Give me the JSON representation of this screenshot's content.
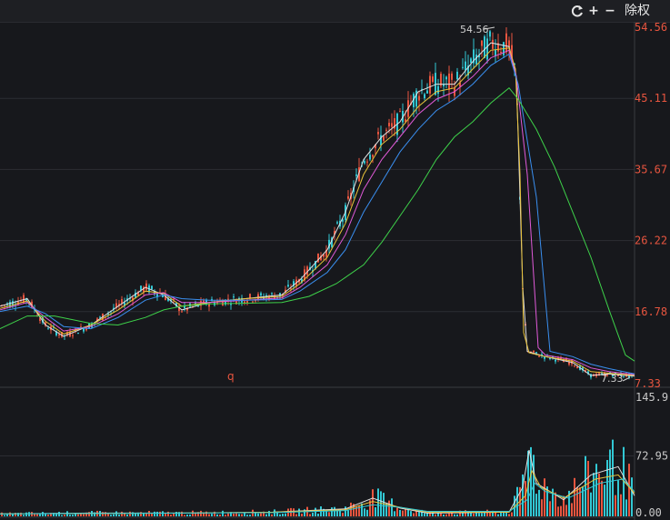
{
  "toolbar": {
    "refresh_icon": "refresh-icon",
    "zoom_in_label": "+",
    "zoom_out_label": "−",
    "ex_rights_label": "除权"
  },
  "colors": {
    "background": "#17181c",
    "grid": "#2c2d33",
    "up": "#e8553f",
    "down": "#32c8d4",
    "price_axis": "#e8553f",
    "volume_axis": "#c8c8c8",
    "ma_white": "#e0e0e0",
    "ma_yellow": "#e8c23a",
    "ma_magenta": "#e05ad8",
    "ma_blue": "#3a8ff0",
    "ma_green": "#3ed24a",
    "marker": "#e8553f"
  },
  "chart_data": [
    {
      "type": "candlestick",
      "ylim": [
        7.33,
        54.56
      ],
      "y_ticks": [
        "54.56",
        "45.11",
        "35.67",
        "26.22",
        "16.78",
        "7.33"
      ],
      "annotations": {
        "high_label": "54.56",
        "low_label": "7.33",
        "marker_label": "q"
      },
      "series": [
        {
          "style": "ma-white",
          "points": [
            [
              0,
              17.5
            ],
            [
              30,
              18.5
            ],
            [
              50,
              15
            ],
            [
              70,
              13.5
            ],
            [
              100,
              15
            ],
            [
              130,
              17.5
            ],
            [
              160,
              20
            ],
            [
              180,
              19
            ],
            [
              200,
              17
            ],
            [
              230,
              18
            ],
            [
              270,
              18.5
            ],
            [
              310,
              19
            ],
            [
              330,
              21
            ],
            [
              360,
              25
            ],
            [
              380,
              30
            ],
            [
              400,
              37
            ],
            [
              420,
              40
            ],
            [
              440,
              42
            ],
            [
              460,
              46
            ],
            [
              480,
              47
            ],
            [
              500,
              47
            ],
            [
              520,
              50
            ],
            [
              540,
              52.5
            ],
            [
              560,
              52
            ],
            [
              568,
              48
            ],
            [
              575,
              20
            ],
            [
              580,
              11.5
            ],
            [
              600,
              10.8
            ],
            [
              630,
              10
            ],
            [
              650,
              8.3
            ],
            [
              670,
              8.5
            ],
            [
              698,
              8.2
            ]
          ]
        },
        {
          "style": "ma-yellow",
          "points": [
            [
              0,
              17.2
            ],
            [
              30,
              18.2
            ],
            [
              50,
              15.5
            ],
            [
              70,
              13.8
            ],
            [
              100,
              15
            ],
            [
              130,
              17
            ],
            [
              160,
              19.5
            ],
            [
              180,
              19.2
            ],
            [
              200,
              17.5
            ],
            [
              230,
              18
            ],
            [
              270,
              18.5
            ],
            [
              310,
              18.8
            ],
            [
              330,
              20.5
            ],
            [
              360,
              24
            ],
            [
              380,
              28.5
            ],
            [
              400,
              35
            ],
            [
              420,
              39
            ],
            [
              440,
              41
            ],
            [
              460,
              44
            ],
            [
              480,
              46
            ],
            [
              500,
              46.5
            ],
            [
              520,
              49
            ],
            [
              540,
              51.5
            ],
            [
              560,
              51.8
            ],
            [
              567,
              49
            ],
            [
              572,
              35
            ],
            [
              576,
              14
            ],
            [
              582,
              11.3
            ],
            [
              600,
              10.8
            ],
            [
              630,
              10.2
            ],
            [
              650,
              8.8
            ],
            [
              670,
              8.6
            ],
            [
              698,
              8.3
            ]
          ]
        },
        {
          "style": "ma-magenta",
          "points": [
            [
              0,
              17
            ],
            [
              30,
              18
            ],
            [
              50,
              16
            ],
            [
              70,
              14.2
            ],
            [
              100,
              14.8
            ],
            [
              130,
              16.5
            ],
            [
              160,
              19
            ],
            [
              180,
              19.3
            ],
            [
              200,
              18
            ],
            [
              230,
              18
            ],
            [
              270,
              18.3
            ],
            [
              310,
              18.6
            ],
            [
              330,
              20
            ],
            [
              360,
              23
            ],
            [
              380,
              27
            ],
            [
              400,
              33
            ],
            [
              420,
              37
            ],
            [
              440,
              40
            ],
            [
              460,
              43
            ],
            [
              480,
              45
            ],
            [
              500,
              46
            ],
            [
              520,
              48
            ],
            [
              540,
              50.5
            ],
            [
              560,
              51.5
            ],
            [
              568,
              48
            ],
            [
              580,
              35
            ],
            [
              592,
              12
            ],
            [
              600,
              11
            ],
            [
              630,
              10.4
            ],
            [
              650,
              9.3
            ],
            [
              670,
              8.8
            ],
            [
              698,
              8.4
            ]
          ]
        },
        {
          "style": "ma-blue",
          "points": [
            [
              0,
              16.8
            ],
            [
              30,
              17.5
            ],
            [
              50,
              16.5
            ],
            [
              70,
              14.8
            ],
            [
              100,
              14.5
            ],
            [
              130,
              16
            ],
            [
              160,
              18.3
            ],
            [
              180,
              19
            ],
            [
              200,
              18.5
            ],
            [
              230,
              18.3
            ],
            [
              270,
              18.3
            ],
            [
              310,
              18.4
            ],
            [
              330,
              19.5
            ],
            [
              360,
              22
            ],
            [
              380,
              25
            ],
            [
              400,
              30
            ],
            [
              420,
              34
            ],
            [
              440,
              38
            ],
            [
              460,
              41
            ],
            [
              480,
              43.5
            ],
            [
              500,
              45
            ],
            [
              520,
              47
            ],
            [
              540,
              49.5
            ],
            [
              560,
              51
            ],
            [
              570,
              47
            ],
            [
              590,
              32
            ],
            [
              605,
              11.5
            ],
            [
              630,
              10.8
            ],
            [
              650,
              9.8
            ],
            [
              670,
              9.2
            ],
            [
              698,
              8.5
            ]
          ]
        },
        {
          "style": "ma-green",
          "points": [
            [
              0,
              14.5
            ],
            [
              30,
              16.2
            ],
            [
              60,
              16.2
            ],
            [
              100,
              15.2
            ],
            [
              130,
              15
            ],
            [
              160,
              16
            ],
            [
              180,
              17
            ],
            [
              200,
              17.5
            ],
            [
              230,
              17.8
            ],
            [
              270,
              17.9
            ],
            [
              310,
              18
            ],
            [
              340,
              18.8
            ],
            [
              370,
              20.5
            ],
            [
              400,
              23
            ],
            [
              420,
              26
            ],
            [
              440,
              29.5
            ],
            [
              460,
              33
            ],
            [
              480,
              37
            ],
            [
              500,
              40
            ],
            [
              520,
              42
            ],
            [
              540,
              44.5
            ],
            [
              560,
              46.5
            ],
            [
              570,
              45
            ],
            [
              590,
              41
            ],
            [
              610,
              36
            ],
            [
              630,
              30
            ],
            [
              650,
              24
            ],
            [
              670,
              17
            ],
            [
              688,
              11
            ],
            [
              698,
              10.2
            ]
          ]
        }
      ]
    },
    {
      "type": "bar",
      "ylim": [
        0,
        145.9
      ],
      "y_ticks": [
        "145.9",
        "72.95",
        "0.00"
      ],
      "series": [
        {
          "style": "vol-ma-white",
          "points": [
            [
              0,
              3
            ],
            [
              100,
              4
            ],
            [
              200,
              4
            ],
            [
              300,
              5
            ],
            [
              380,
              9
            ],
            [
              410,
              22
            ],
            [
              440,
              10
            ],
            [
              470,
              4
            ],
            [
              560,
              5
            ],
            [
              575,
              35
            ],
            [
              582,
              80
            ],
            [
              590,
              40
            ],
            [
              620,
              20
            ],
            [
              650,
              50
            ],
            [
              680,
              60
            ],
            [
              698,
              25
            ]
          ]
        },
        {
          "style": "vol-ma-yellow",
          "points": [
            [
              0,
              3
            ],
            [
              100,
              3.5
            ],
            [
              200,
              4
            ],
            [
              300,
              5
            ],
            [
              380,
              8
            ],
            [
              410,
              18
            ],
            [
              440,
              11
            ],
            [
              470,
              5
            ],
            [
              560,
              5
            ],
            [
              578,
              25
            ],
            [
              585,
              55
            ],
            [
              595,
              35
            ],
            [
              620,
              22
            ],
            [
              655,
              45
            ],
            [
              680,
              50
            ],
            [
              698,
              28
            ]
          ]
        },
        {
          "style": "vol-ma-blue",
          "points": [
            [
              0,
              3
            ],
            [
              100,
              3.5
            ],
            [
              200,
              4
            ],
            [
              300,
              4.5
            ],
            [
              380,
              7
            ],
            [
              410,
              14
            ],
            [
              440,
              11
            ],
            [
              470,
              6
            ],
            [
              560,
              6
            ],
            [
              580,
              20
            ],
            [
              588,
              40
            ],
            [
              600,
              30
            ],
            [
              625,
              22
            ],
            [
              660,
              40
            ],
            [
              685,
              45
            ],
            [
              698,
              30
            ]
          ]
        }
      ]
    }
  ]
}
